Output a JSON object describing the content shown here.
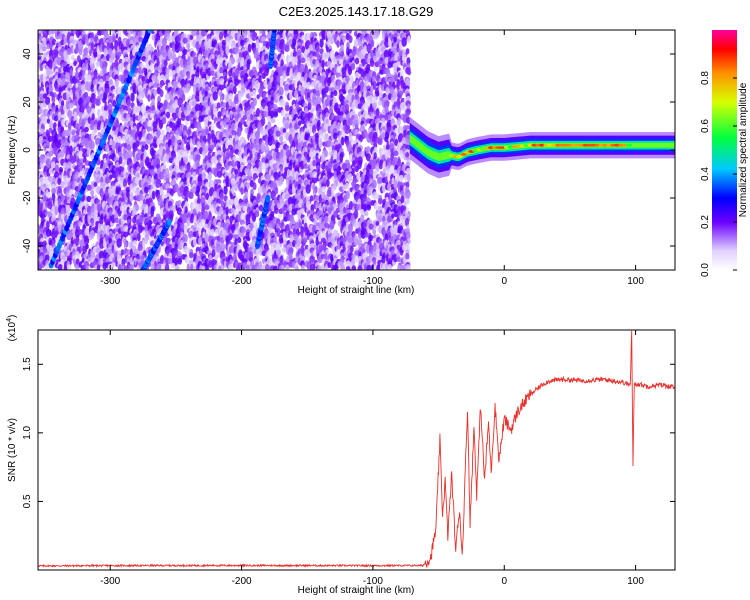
{
  "title": "C2E3.2025.143.17.18.G29",
  "colors": {
    "snr_line": "#e8302c",
    "axis": "#000000"
  },
  "colorbar": {
    "label": "Normalized spectral amplitude",
    "ticks": [
      0.0,
      0.2,
      0.4,
      0.6,
      0.8
    ],
    "tick_labels": [
      "0.0",
      "0.2",
      "0.4",
      "0.6",
      "0.8"
    ],
    "range": [
      0,
      1
    ],
    "colormap": "rainbow-violet-to-red-white-low"
  },
  "chart_data": [
    {
      "type": "heatmap",
      "xlabel": "Height of straight line (km)",
      "ylabel": "Frequency (Hz)",
      "xlim": [
        -355,
        130
      ],
      "ylim": [
        -50,
        50
      ],
      "xticks": [
        -300,
        -200,
        -100,
        0,
        100
      ],
      "xtick_labels": [
        "-300",
        "-200",
        "-100",
        "0",
        "100"
      ],
      "yticks": [
        -40,
        -20,
        0,
        20,
        40
      ],
      "ytick_labels": [
        "-40",
        "-20",
        "0",
        "20",
        "40"
      ],
      "noise_region_x": [
        -355,
        -72
      ],
      "signal_ridge": [
        [
          -72,
          5
        ],
        [
          -65,
          2
        ],
        [
          -58,
          -1
        ],
        [
          -50,
          -3
        ],
        [
          -42,
          -2
        ],
        [
          -35,
          -3
        ],
        [
          -28,
          -1
        ],
        [
          -20,
          0
        ],
        [
          -10,
          1
        ],
        [
          0,
          1
        ],
        [
          20,
          2
        ],
        [
          50,
          2
        ],
        [
          90,
          2
        ],
        [
          130,
          2
        ]
      ],
      "streaks": [
        [
          [
            -345,
            -48
          ],
          [
            -270,
            50
          ]
        ],
        [
          [
            -275,
            -50
          ],
          [
            -255,
            -30
          ]
        ],
        [
          [
            -188,
            -40
          ],
          [
            -180,
            -20
          ]
        ],
        [
          [
            -178,
            35
          ],
          [
            -175,
            50
          ]
        ]
      ]
    },
    {
      "type": "line",
      "xlabel": "Height of straight line (km)",
      "ylabel": "SNR (10 * v/v)",
      "y_multiplier_label": "(x10",
      "y_multiplier_exp": "4",
      "y_multiplier_close": ")",
      "xlim": [
        -355,
        130
      ],
      "ylim": [
        0,
        17500
      ],
      "xticks": [
        -300,
        -200,
        -100,
        0,
        100
      ],
      "xtick_labels": [
        "-300",
        "-200",
        "-100",
        "0",
        "100"
      ],
      "yticks": [
        5000,
        10000,
        15000
      ],
      "ytick_labels": [
        "0.5",
        "1.0",
        "1.5"
      ],
      "series": [
        {
          "points": [
            [
              -355,
              300
            ],
            [
              -300,
              320
            ],
            [
              -200,
              330
            ],
            [
              -100,
              320
            ],
            [
              -62,
              330
            ],
            [
              -56,
              900
            ],
            [
              -52,
              3000
            ],
            [
              -49,
              9500
            ],
            [
              -47,
              4000
            ],
            [
              -45,
              6500
            ],
            [
              -43,
              2500
            ],
            [
              -40,
              7000
            ],
            [
              -37,
              1500
            ],
            [
              -34,
              4500
            ],
            [
              -32,
              900
            ],
            [
              -28,
              11800
            ],
            [
              -26,
              3500
            ],
            [
              -23,
              10500
            ],
            [
              -21,
              5500
            ],
            [
              -18,
              12000
            ],
            [
              -15,
              6500
            ],
            [
              -12,
              10800
            ],
            [
              -10,
              7200
            ],
            [
              -7,
              12000
            ],
            [
              -4,
              8000
            ],
            [
              0,
              11000
            ],
            [
              5,
              10200
            ],
            [
              10,
              11500
            ],
            [
              15,
              12200
            ],
            [
              20,
              12800
            ],
            [
              25,
              13200
            ],
            [
              30,
              13600
            ],
            [
              35,
              13800
            ],
            [
              45,
              13900
            ],
            [
              60,
              13800
            ],
            [
              75,
              13900
            ],
            [
              90,
              13700
            ],
            [
              96,
              13500
            ],
            [
              97,
              17500
            ],
            [
              98,
              7700
            ],
            [
              99,
              13600
            ],
            [
              110,
              13400
            ],
            [
              120,
              13500
            ],
            [
              130,
              13300
            ]
          ]
        }
      ]
    }
  ]
}
